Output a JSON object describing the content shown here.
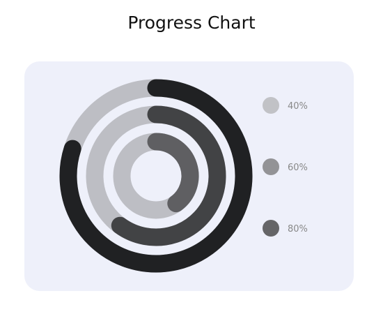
{
  "chart_data": {
    "type": "progress-rings",
    "title": "Progress Chart",
    "series": [
      {
        "name": "40%",
        "value": 40,
        "color": "#5f5f62"
      },
      {
        "name": "60%",
        "value": 60,
        "color": "#424345"
      },
      {
        "name": "80%",
        "value": 80,
        "color": "#202123"
      }
    ],
    "max": 100,
    "track_color": "#bdbec4",
    "legend": {
      "placement": "right",
      "items": [
        {
          "label": "40%",
          "color": "#c1c2c6"
        },
        {
          "label": "60%",
          "color": "#939396"
        },
        {
          "label": "80%",
          "color": "#656567"
        }
      ]
    }
  },
  "colors": {
    "background": "#ffffff",
    "card": "#eef0fa"
  }
}
